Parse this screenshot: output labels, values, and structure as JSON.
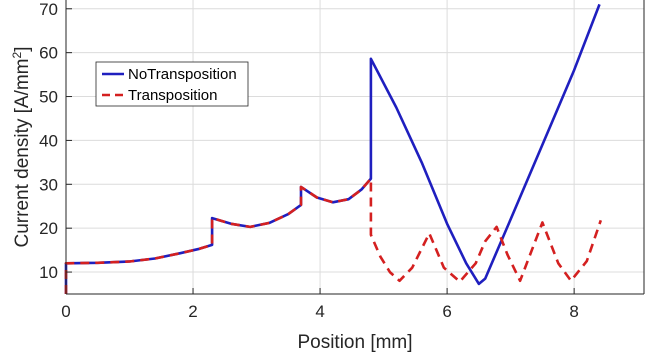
{
  "chart_data": {
    "type": "line",
    "xlabel": "Position [mm]",
    "ylabel": "Current density [A/mm",
    "ylabel_sup": "2",
    "ylabel_end": "]",
    "xlim": [
      0,
      9.1
    ],
    "ylim": [
      5,
      72
    ],
    "x_ticks": [
      0,
      2,
      4,
      6,
      8
    ],
    "x_tick_labels": [
      "0",
      "2",
      "4",
      "6",
      "8"
    ],
    "y_ticks": [
      10,
      20,
      30,
      40,
      50,
      60,
      70
    ],
    "y_tick_labels": [
      "10",
      "20",
      "30",
      "40",
      "50",
      "60",
      "70"
    ],
    "grid": true,
    "legend_position": "upper-left",
    "colors": {
      "NoTransposition": "#1f1fbf",
      "Transposition": "#d42020",
      "grid": "#dcdcdc",
      "axes": "#262626"
    },
    "series": [
      {
        "name": "NoTransposition",
        "style": "solid",
        "x": [
          0,
          0,
          0.5,
          1.0,
          1.4,
          1.8,
          2.1,
          2.3,
          2.3,
          2.6,
          2.9,
          3.2,
          3.5,
          3.7,
          3.7,
          3.95,
          4.2,
          4.45,
          4.65,
          4.8,
          4.8,
          5.2,
          5.6,
          6.0,
          6.3,
          6.5,
          6.6,
          7.0,
          7.5,
          8.0,
          8.4
        ],
        "y": [
          5,
          12,
          12.1,
          12.4,
          13.1,
          14.3,
          15.3,
          16.2,
          22.3,
          21,
          20.3,
          21.2,
          23.2,
          25.3,
          29.4,
          27,
          25.9,
          26.6,
          28.8,
          31.3,
          58.6,
          47.5,
          35,
          21,
          12,
          7.3,
          8.5,
          22,
          39,
          56,
          71
        ]
      },
      {
        "name": "Transposition",
        "style": "dashed",
        "x": [
          0,
          0,
          0.5,
          1.0,
          1.4,
          1.8,
          2.1,
          2.3,
          2.3,
          2.6,
          2.9,
          3.2,
          3.5,
          3.7,
          3.7,
          3.95,
          4.2,
          4.45,
          4.65,
          4.8,
          4.8,
          4.95,
          5.1,
          5.25,
          5.45,
          5.72,
          5.95,
          6.2,
          6.45,
          6.6,
          6.78,
          6.95,
          7.15,
          7.5,
          7.75,
          7.95,
          8.2,
          8.42
        ],
        "y": [
          5,
          12,
          12.1,
          12.4,
          13.1,
          14.3,
          15.3,
          16.2,
          22.3,
          21,
          20.3,
          21.2,
          23.2,
          25.3,
          29.4,
          27,
          25.9,
          26.6,
          28.8,
          31.3,
          18.5,
          13.5,
          10,
          8,
          11,
          18.8,
          11,
          7.8,
          12,
          17,
          20.3,
          14,
          8,
          21.3,
          12,
          8,
          12.5,
          21.8
        ]
      }
    ]
  }
}
